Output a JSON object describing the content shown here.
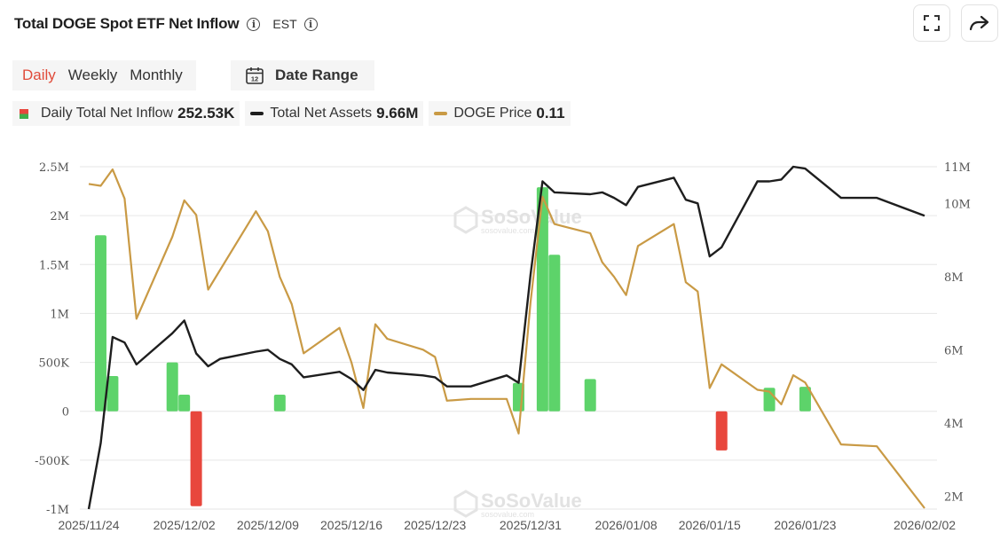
{
  "header": {
    "title": "Total DOGE Spot ETF Net Inflow",
    "timezone": "EST",
    "fullscreen_icon": "fullscreen-icon",
    "share_icon": "share-icon",
    "info_icon": "info-icon"
  },
  "tabs": [
    {
      "label": "Daily",
      "active": true
    },
    {
      "label": "Weekly",
      "active": false
    },
    {
      "label": "Monthly",
      "active": false
    }
  ],
  "date_range": {
    "label": "Date Range",
    "icon": "calendar-icon",
    "icon_text": "12"
  },
  "legend": [
    {
      "label": "Daily Total Net Inflow",
      "value": "252.53K",
      "color": "#5dd36a"
    },
    {
      "label": "Total Net Assets",
      "value": "9.66M",
      "color": "#1e1e1e"
    },
    {
      "label": "DOGE Price",
      "value": "0.11",
      "color": "#c99a45"
    }
  ],
  "watermark": {
    "brand": "SoSoValue",
    "site": "sosovalue.com"
  },
  "chart_data": {
    "type": "bar",
    "colors": {
      "inflow_positive": "#5dd36a",
      "inflow_negative": "#e8473d",
      "assets": "#1e1e1e",
      "price": "#c99a45"
    },
    "grid": true,
    "x_tick_labels": [
      "2025/11/24",
      "2025/12/02",
      "2025/12/09",
      "2025/12/16",
      "2025/12/23",
      "2025/12/31",
      "2026/01/08",
      "2026/01/15",
      "2026/01/23",
      "2026/02/02"
    ],
    "x_ticks": [
      "2025-11-24",
      "2025-12-02",
      "2025-12-09",
      "2025-12-16",
      "2025-12-23",
      "2025-12-31",
      "2026-01-08",
      "2026-01-15",
      "2026-01-23",
      "2026-02-02"
    ],
    "x_range": [
      "2025-11-24",
      "2026-02-02"
    ],
    "y_left": {
      "ticks": [
        -1000000,
        -500000,
        0,
        500000,
        1000000,
        1500000,
        2000000,
        2500000
      ],
      "tick_labels": [
        "-1M",
        "-500K",
        "0",
        "500K",
        "1M",
        "1.5M",
        "2M",
        "2.5M"
      ],
      "range": [
        -1000000,
        2500000
      ]
    },
    "y_right": {
      "ticks": [
        2000000,
        4000000,
        6000000,
        8000000,
        10000000,
        11000000
      ],
      "tick_labels": [
        "2M",
        "4M",
        "6M",
        "8M",
        "10M",
        "11M"
      ],
      "range": [
        1650000,
        11000000
      ]
    },
    "series": [
      {
        "name": "Daily Total Net Inflow",
        "kind": "bar",
        "points": [
          [
            "2025-11-25",
            1800000
          ],
          [
            "2025-11-26",
            360000
          ],
          [
            "2025-12-01",
            500000
          ],
          [
            "2025-12-02",
            170000
          ],
          [
            "2025-12-03",
            -970000
          ],
          [
            "2025-12-10",
            170000
          ],
          [
            "2025-12-30",
            290000
          ],
          [
            "2026-01-01",
            2290000
          ],
          [
            "2026-01-02",
            1600000
          ],
          [
            "2026-01-05",
            330000
          ],
          [
            "2026-01-16",
            -400000
          ],
          [
            "2026-01-20",
            240000
          ],
          [
            "2026-01-23",
            250000
          ]
        ]
      },
      {
        "name": "Total Net Assets",
        "kind": "line",
        "points": [
          [
            "2025-11-24",
            1650000
          ],
          [
            "2025-11-25",
            3450000
          ],
          [
            "2025-11-26",
            6350000
          ],
          [
            "2025-11-27",
            6200000
          ],
          [
            "2025-11-28",
            5600000
          ],
          [
            "2025-12-01",
            6450000
          ],
          [
            "2025-12-02",
            6800000
          ],
          [
            "2025-12-03",
            5900000
          ],
          [
            "2025-12-04",
            5550000
          ],
          [
            "2025-12-05",
            5750000
          ],
          [
            "2025-12-08",
            5950000
          ],
          [
            "2025-12-09",
            6000000
          ],
          [
            "2025-12-10",
            5750000
          ],
          [
            "2025-12-11",
            5600000
          ],
          [
            "2025-12-12",
            5250000
          ],
          [
            "2025-12-15",
            5400000
          ],
          [
            "2025-12-16",
            5200000
          ],
          [
            "2025-12-17",
            4900000
          ],
          [
            "2025-12-18",
            5450000
          ],
          [
            "2025-12-19",
            5380000
          ],
          [
            "2025-12-22",
            5300000
          ],
          [
            "2025-12-23",
            5250000
          ],
          [
            "2025-12-24",
            5000000
          ],
          [
            "2025-12-26",
            5000000
          ],
          [
            "2025-12-29",
            5300000
          ],
          [
            "2025-12-30",
            5100000
          ],
          [
            "2025-12-31",
            8050000
          ],
          [
            "2026-01-01",
            10600000
          ],
          [
            "2026-01-02",
            10300000
          ],
          [
            "2026-01-05",
            10250000
          ],
          [
            "2026-01-06",
            10300000
          ],
          [
            "2026-01-07",
            10150000
          ],
          [
            "2026-01-08",
            9950000
          ],
          [
            "2026-01-09",
            10450000
          ],
          [
            "2026-01-12",
            10700000
          ],
          [
            "2026-01-13",
            10100000
          ],
          [
            "2026-01-14",
            10000000
          ],
          [
            "2026-01-15",
            8550000
          ],
          [
            "2026-01-16",
            8800000
          ],
          [
            "2026-01-19",
            10600000
          ],
          [
            "2026-01-20",
            10600000
          ],
          [
            "2026-01-21",
            10650000
          ],
          [
            "2026-01-22",
            11000000
          ],
          [
            "2026-01-23",
            10950000
          ],
          [
            "2026-01-26",
            10150000
          ],
          [
            "2026-01-29",
            10150000
          ],
          [
            "2026-02-02",
            9660000
          ]
        ]
      },
      {
        "name": "DOGE Price",
        "kind": "line",
        "points": [
          [
            "2025-11-24",
            10.55
          ],
          [
            "2025-11-25",
            10.5
          ],
          [
            "2025-11-26",
            10.95
          ],
          [
            "2025-11-27",
            10.15
          ],
          [
            "2025-11-28",
            6.85
          ],
          [
            "2025-12-01",
            9.1
          ],
          [
            "2025-12-02",
            10.1
          ],
          [
            "2025-12-03",
            9.7
          ],
          [
            "2025-12-04",
            7.65
          ],
          [
            "2025-12-08",
            9.8
          ],
          [
            "2025-12-09",
            9.25
          ],
          [
            "2025-12-10",
            8.0
          ],
          [
            "2025-12-11",
            7.25
          ],
          [
            "2025-12-12",
            5.9
          ],
          [
            "2025-12-15",
            6.6
          ],
          [
            "2025-12-16",
            5.65
          ],
          [
            "2025-12-17",
            4.4
          ],
          [
            "2025-12-18",
            6.7
          ],
          [
            "2025-12-19",
            6.3
          ],
          [
            "2025-12-22",
            6.0
          ],
          [
            "2025-12-23",
            5.8
          ],
          [
            "2025-12-24",
            4.6
          ],
          [
            "2025-12-26",
            4.65
          ],
          [
            "2025-12-29",
            4.65
          ],
          [
            "2025-12-30",
            3.7
          ],
          [
            "2025-12-31",
            7.3
          ],
          [
            "2026-01-01",
            10.2
          ],
          [
            "2026-01-02",
            9.45
          ],
          [
            "2026-01-05",
            9.2
          ],
          [
            "2026-01-06",
            8.4
          ],
          [
            "2026-01-07",
            8.0
          ],
          [
            "2026-01-08",
            7.5
          ],
          [
            "2026-01-09",
            8.85
          ],
          [
            "2026-01-12",
            9.45
          ],
          [
            "2026-01-13",
            7.85
          ],
          [
            "2026-01-14",
            7.6
          ],
          [
            "2026-01-15",
            4.95
          ],
          [
            "2026-01-16",
            5.6
          ],
          [
            "2026-01-19",
            4.9
          ],
          [
            "2026-01-20",
            4.85
          ],
          [
            "2026-01-21",
            4.5
          ],
          [
            "2026-01-22",
            5.3
          ],
          [
            "2026-01-23",
            5.1
          ],
          [
            "2026-01-26",
            3.4
          ],
          [
            "2026-01-29",
            3.35
          ],
          [
            "2026-02-02",
            1.65
          ]
        ]
      }
    ]
  }
}
